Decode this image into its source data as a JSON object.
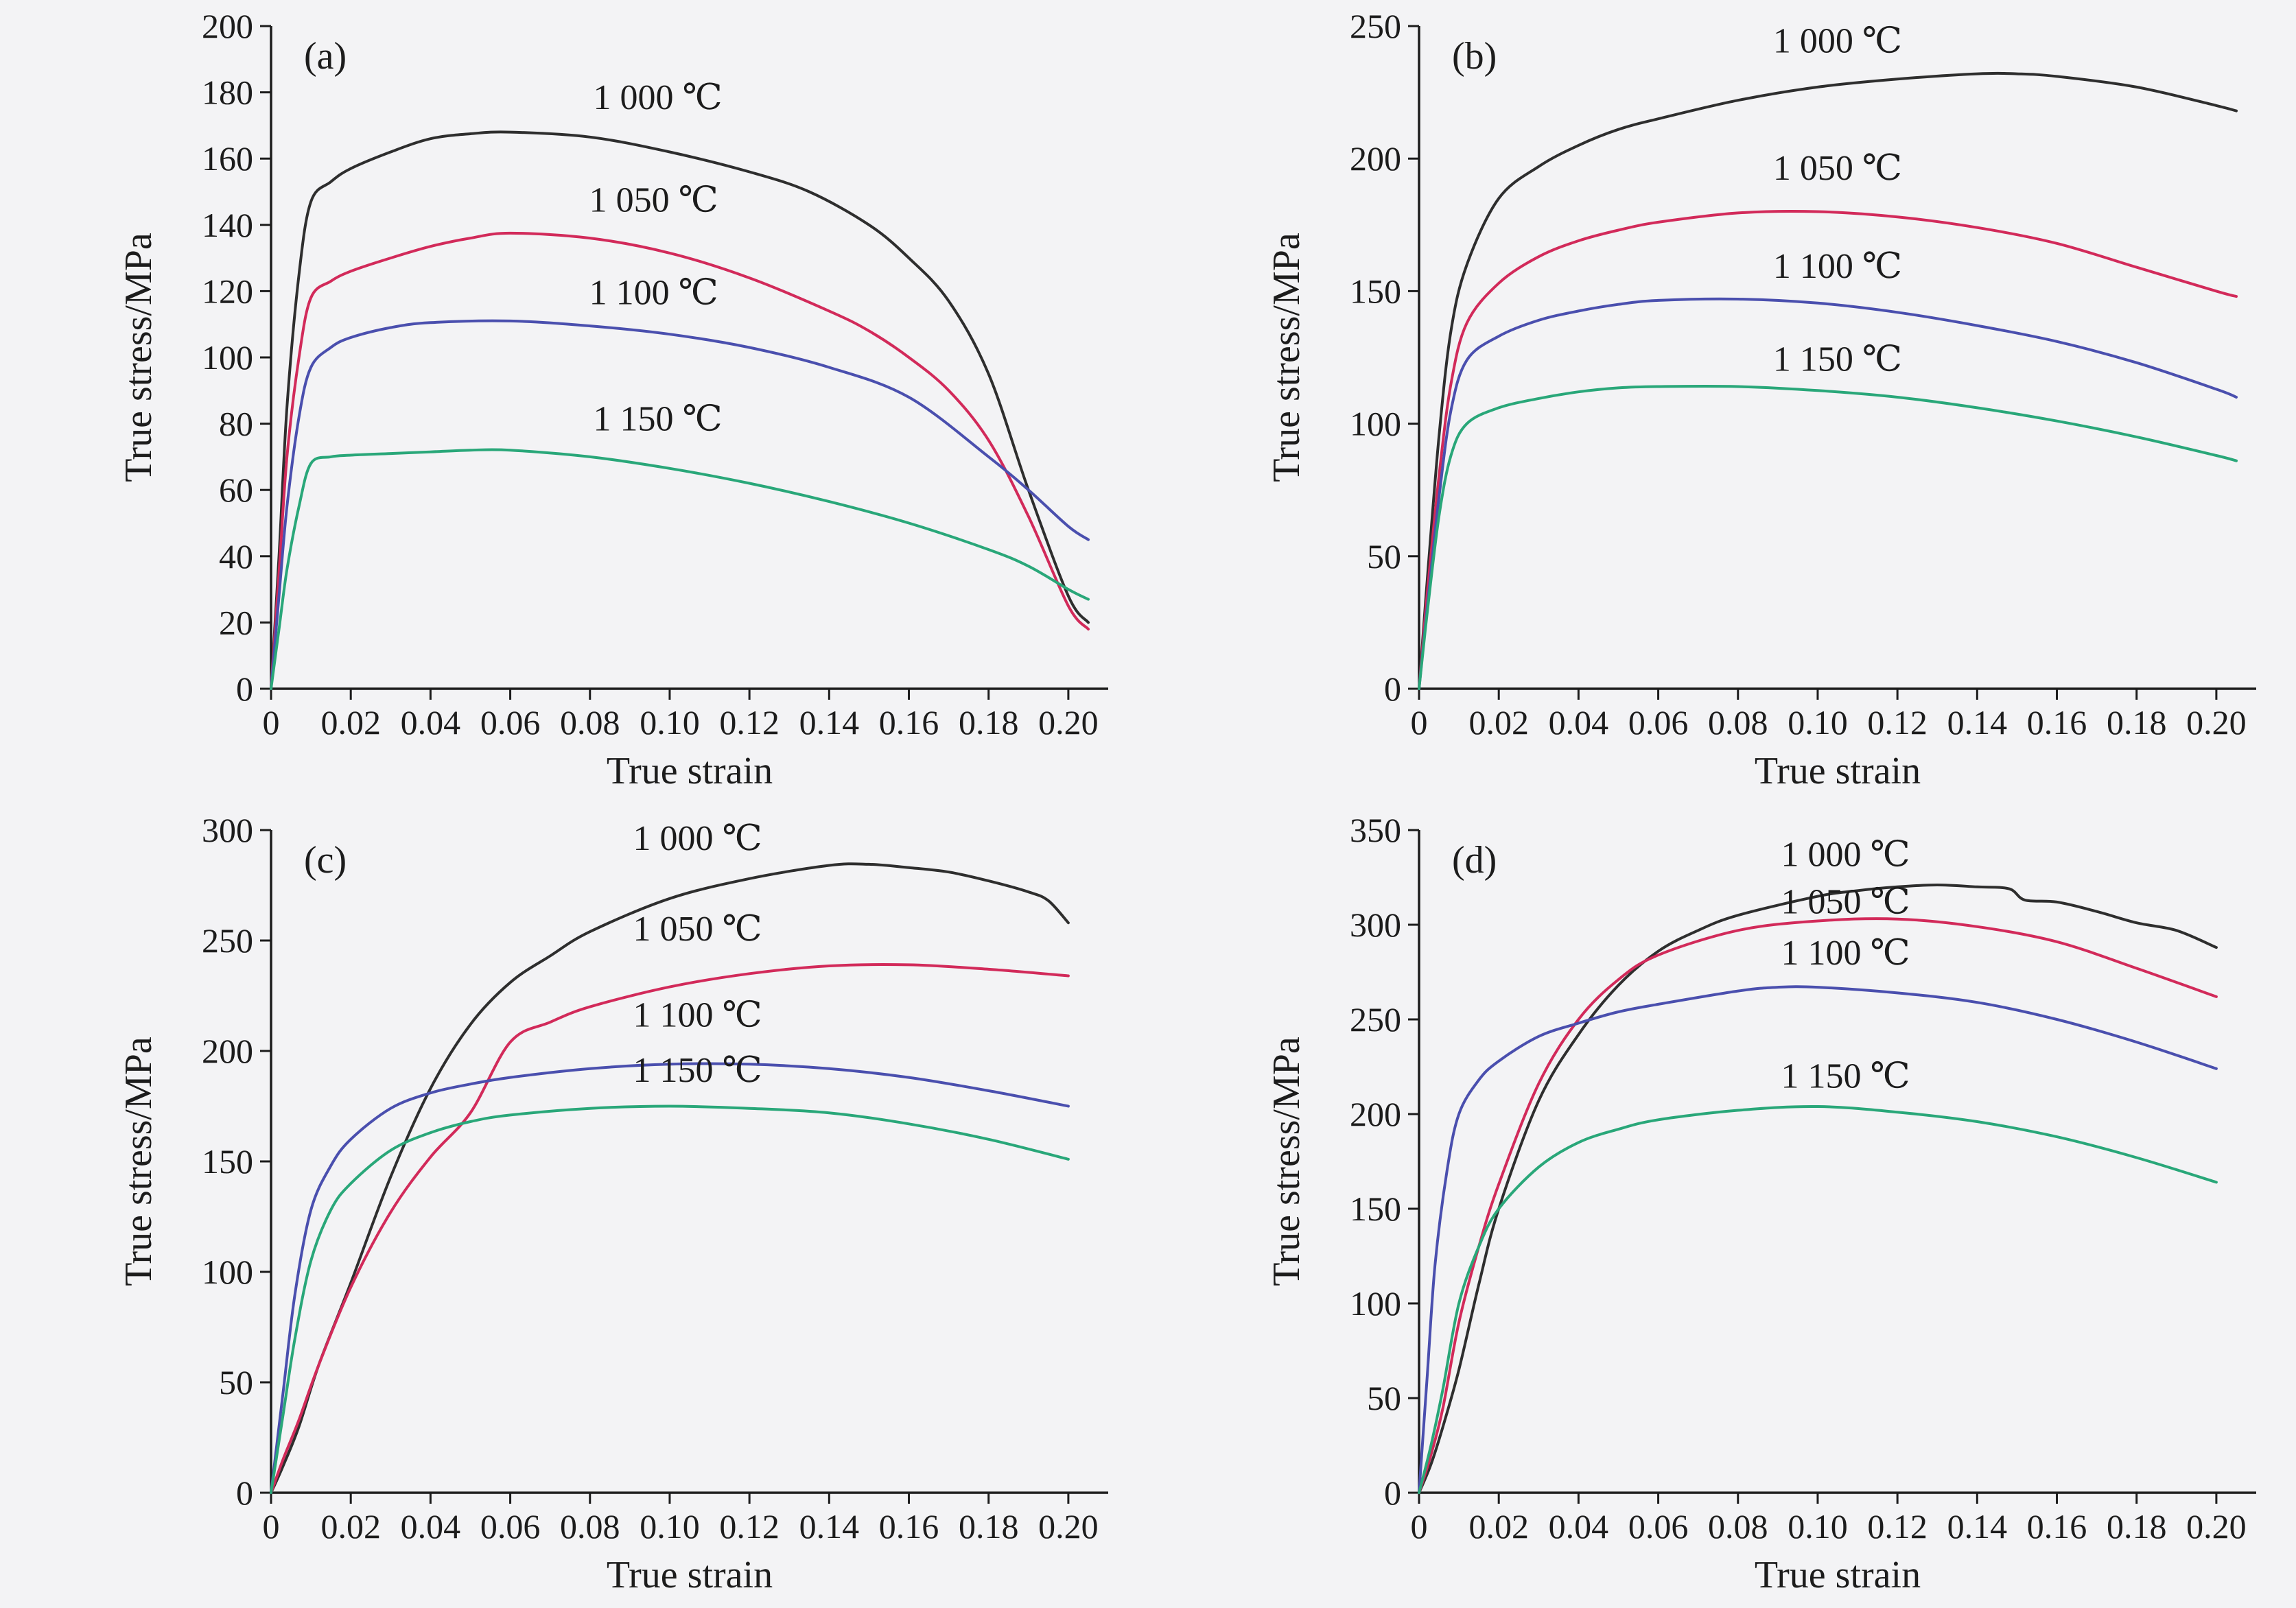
{
  "figure": {
    "background": "#f3f3f5",
    "axis_color": "#1c1c1c",
    "text_color": "#1c1c1c",
    "series_colors": {
      "1000": "#2e2e2e",
      "1050": "#d22a5a",
      "1100": "#4a4fae",
      "1150": "#29a779"
    }
  },
  "chart_data": [
    {
      "type": "line",
      "panel": "(a)",
      "panel_key": "a",
      "xlabel": "True strain",
      "ylabel": "True stress/MPa",
      "xlim": [
        0,
        0.21
      ],
      "ylim": [
        0,
        200
      ],
      "grid": false,
      "legend": "in-plot labels",
      "xticks": [
        0,
        0.02,
        0.04,
        0.06,
        0.08,
        0.1,
        0.12,
        0.14,
        0.16,
        0.18,
        0.2
      ],
      "xtick_labels": [
        "0",
        "0.02",
        "0.04",
        "0.06",
        "0.08",
        "0.10",
        "0.12",
        "0.14",
        "0.16",
        "0.18",
        "0.20"
      ],
      "yticks": [
        0,
        20,
        40,
        60,
        80,
        100,
        120,
        140,
        160,
        180,
        200
      ],
      "series": [
        {
          "name": "1 000 ℃",
          "color_key": "1000",
          "label_x": 0.097,
          "label_y": 175,
          "x": [
            0,
            0.002,
            0.004,
            0.007,
            0.01,
            0.015,
            0.02,
            0.03,
            0.04,
            0.05,
            0.06,
            0.08,
            0.1,
            0.12,
            0.135,
            0.15,
            0.16,
            0.17,
            0.18,
            0.19,
            0.2,
            0.205
          ],
          "y": [
            0,
            40,
            85,
            125,
            147,
            153,
            157,
            162,
            166,
            167.5,
            168,
            166.5,
            162,
            156,
            150,
            140,
            130,
            117,
            95,
            60,
            28,
            20
          ]
        },
        {
          "name": "1 050 ℃",
          "color_key": "1050",
          "label_x": 0.096,
          "label_y": 144,
          "x": [
            0,
            0.002,
            0.004,
            0.007,
            0.01,
            0.015,
            0.02,
            0.03,
            0.04,
            0.05,
            0.06,
            0.08,
            0.1,
            0.12,
            0.14,
            0.15,
            0.16,
            0.17,
            0.18,
            0.19,
            0.2,
            0.205
          ],
          "y": [
            0,
            35,
            70,
            100,
            118,
            123,
            126,
            130,
            133.5,
            136,
            137.5,
            136,
            131.5,
            124,
            114,
            108,
            100,
            90,
            75,
            52,
            25,
            18
          ]
        },
        {
          "name": "1 100 ℃",
          "color_key": "1100",
          "label_x": 0.096,
          "label_y": 116,
          "x": [
            0,
            0.002,
            0.004,
            0.007,
            0.01,
            0.015,
            0.02,
            0.03,
            0.04,
            0.06,
            0.08,
            0.1,
            0.12,
            0.14,
            0.16,
            0.18,
            0.19,
            0.2,
            0.205
          ],
          "y": [
            0,
            28,
            55,
            82,
            97,
            103,
            106,
            109,
            110.5,
            111,
            109.5,
            107,
            103,
            97,
            88,
            70,
            60,
            49,
            45
          ]
        },
        {
          "name": "1 150 ℃",
          "color_key": "1150",
          "label_x": 0.097,
          "label_y": 78,
          "x": [
            0,
            0.002,
            0.004,
            0.007,
            0.01,
            0.015,
            0.02,
            0.03,
            0.04,
            0.05,
            0.06,
            0.08,
            0.1,
            0.12,
            0.14,
            0.16,
            0.18,
            0.19,
            0.2,
            0.205
          ],
          "y": [
            0,
            18,
            36,
            55,
            68,
            70,
            70.5,
            71,
            71.5,
            72,
            72,
            70,
            66.5,
            62,
            56.5,
            50,
            42,
            37,
            30,
            27
          ]
        }
      ]
    },
    {
      "type": "line",
      "panel": "(b)",
      "panel_key": "b",
      "xlabel": "True strain",
      "ylabel": "True stress/MPa",
      "xlim": [
        0,
        0.21
      ],
      "ylim": [
        0,
        250
      ],
      "grid": false,
      "legend": "in-plot labels",
      "xticks": [
        0,
        0.02,
        0.04,
        0.06,
        0.08,
        0.1,
        0.12,
        0.14,
        0.16,
        0.18,
        0.2
      ],
      "xtick_labels": [
        "0",
        "0.02",
        "0.04",
        "0.06",
        "0.08",
        "0.10",
        "0.12",
        "0.14",
        "0.16",
        "0.18",
        "0.20"
      ],
      "yticks": [
        0,
        50,
        100,
        150,
        200,
        250
      ],
      "series": [
        {
          "name": "1 000 ℃",
          "color_key": "1000",
          "label_x": 0.105,
          "label_y": 240,
          "x": [
            0,
            0.002,
            0.005,
            0.008,
            0.012,
            0.02,
            0.03,
            0.04,
            0.05,
            0.06,
            0.08,
            0.1,
            0.12,
            0.14,
            0.15,
            0.16,
            0.18,
            0.2,
            0.205
          ],
          "y": [
            0,
            40,
            95,
            135,
            160,
            185,
            197,
            205,
            211,
            215,
            222,
            227,
            230,
            232,
            232,
            231,
            227,
            220,
            218
          ]
        },
        {
          "name": "1 050 ℃",
          "color_key": "1050",
          "label_x": 0.105,
          "label_y": 192,
          "x": [
            0,
            0.002,
            0.005,
            0.008,
            0.012,
            0.02,
            0.03,
            0.04,
            0.05,
            0.06,
            0.08,
            0.1,
            0.12,
            0.14,
            0.16,
            0.18,
            0.2,
            0.205
          ],
          "y": [
            0,
            35,
            80,
            115,
            138,
            153,
            163,
            169,
            173,
            176,
            179.5,
            180,
            178,
            174,
            168,
            159,
            150,
            148
          ]
        },
        {
          "name": "1 100 ℃",
          "color_key": "1100",
          "label_x": 0.105,
          "label_y": 155,
          "x": [
            0,
            0.002,
            0.005,
            0.008,
            0.012,
            0.02,
            0.03,
            0.04,
            0.05,
            0.06,
            0.08,
            0.1,
            0.12,
            0.14,
            0.16,
            0.18,
            0.2,
            0.205
          ],
          "y": [
            0,
            30,
            72,
            105,
            124,
            133,
            139,
            142.5,
            145,
            146.5,
            147,
            145.5,
            142,
            137,
            131,
            123,
            113,
            110
          ]
        },
        {
          "name": "1 150 ℃",
          "color_key": "1150",
          "label_x": 0.105,
          "label_y": 120,
          "x": [
            0,
            0.002,
            0.005,
            0.008,
            0.012,
            0.02,
            0.03,
            0.04,
            0.05,
            0.06,
            0.08,
            0.1,
            0.12,
            0.14,
            0.16,
            0.18,
            0.2,
            0.205
          ],
          "y": [
            0,
            28,
            65,
            88,
            100,
            106,
            109.5,
            112,
            113.5,
            114,
            114,
            112.5,
            110,
            106,
            101,
            95,
            88,
            86
          ]
        }
      ]
    },
    {
      "type": "line",
      "panel": "(c)",
      "panel_key": "c",
      "xlabel": "True strain",
      "ylabel": "True stress/MPa",
      "xlim": [
        0,
        0.21
      ],
      "ylim": [
        0,
        300
      ],
      "grid": false,
      "legend": "in-plot labels",
      "xticks": [
        0,
        0.02,
        0.04,
        0.06,
        0.08,
        0.1,
        0.12,
        0.14,
        0.16,
        0.18,
        0.2
      ],
      "xtick_labels": [
        "0",
        "0.02",
        "0.04",
        "0.06",
        "0.08",
        "0.10",
        "0.12",
        "0.14",
        "0.16",
        "0.18",
        "0.20"
      ],
      "yticks": [
        0,
        50,
        100,
        150,
        200,
        250,
        300
      ],
      "series": [
        {
          "name": "1 000 ℃",
          "color_key": "1000",
          "label_x": 0.107,
          "label_y": 291,
          "x": [
            0,
            0.003,
            0.007,
            0.012,
            0.02,
            0.03,
            0.04,
            0.05,
            0.06,
            0.07,
            0.08,
            0.1,
            0.12,
            0.14,
            0.15,
            0.16,
            0.17,
            0.18,
            0.19,
            0.195,
            0.2
          ],
          "y": [
            0,
            12,
            30,
            58,
            95,
            143,
            183,
            212,
            231,
            243,
            254,
            269,
            278,
            284,
            284.5,
            283,
            281,
            277,
            272,
            268,
            258
          ]
        },
        {
          "name": "1 050 ℃",
          "color_key": "1050",
          "label_x": 0.107,
          "label_y": 250,
          "x": [
            0,
            0.003,
            0.007,
            0.012,
            0.02,
            0.03,
            0.04,
            0.05,
            0.06,
            0.07,
            0.08,
            0.1,
            0.12,
            0.14,
            0.16,
            0.18,
            0.2
          ],
          "y": [
            0,
            15,
            33,
            58,
            93,
            127,
            152,
            172,
            204,
            213,
            220,
            229,
            235,
            238.5,
            239,
            237,
            234
          ]
        },
        {
          "name": "1 100 ℃",
          "color_key": "1100",
          "label_x": 0.107,
          "label_y": 211,
          "x": [
            0,
            0.003,
            0.006,
            0.01,
            0.015,
            0.02,
            0.03,
            0.04,
            0.05,
            0.06,
            0.08,
            0.1,
            0.12,
            0.14,
            0.16,
            0.18,
            0.2
          ],
          "y": [
            0,
            45,
            90,
            128,
            148,
            160,
            174,
            181,
            185,
            188,
            192,
            194,
            194,
            192,
            188,
            182,
            175
          ]
        },
        {
          "name": "1 150 ℃",
          "color_key": "1150",
          "label_x": 0.107,
          "label_y": 186,
          "x": [
            0,
            0.003,
            0.006,
            0.01,
            0.015,
            0.02,
            0.03,
            0.04,
            0.05,
            0.06,
            0.08,
            0.1,
            0.12,
            0.14,
            0.16,
            0.18,
            0.2
          ],
          "y": [
            0,
            35,
            70,
            105,
            128,
            140,
            155,
            163,
            168,
            171,
            174,
            175,
            174,
            172,
            167,
            160,
            151
          ]
        }
      ]
    },
    {
      "type": "line",
      "panel": "(d)",
      "panel_key": "d",
      "xlabel": "True strain",
      "ylabel": "True stress/MPa",
      "xlim": [
        0,
        0.21
      ],
      "ylim": [
        0,
        350
      ],
      "grid": false,
      "legend": "in-plot labels",
      "xticks": [
        0,
        0.02,
        0.04,
        0.06,
        0.08,
        0.1,
        0.12,
        0.14,
        0.16,
        0.18,
        0.2
      ],
      "xtick_labels": [
        "0",
        "0.02",
        "0.04",
        "0.06",
        "0.08",
        "0.10",
        "0.12",
        "0.14",
        "0.16",
        "0.18",
        "0.20"
      ],
      "yticks": [
        0,
        50,
        100,
        150,
        200,
        250,
        300,
        350
      ],
      "series": [
        {
          "name": "1 000 ℃",
          "color_key": "1000",
          "label_x": 0.107,
          "label_y": 331,
          "x": [
            0,
            0.003,
            0.006,
            0.01,
            0.015,
            0.02,
            0.03,
            0.04,
            0.05,
            0.06,
            0.07,
            0.08,
            0.1,
            0.11,
            0.12,
            0.13,
            0.14,
            0.148,
            0.152,
            0.16,
            0.17,
            0.18,
            0.19,
            0.2
          ],
          "y": [
            0,
            15,
            35,
            65,
            110,
            150,
            207,
            242,
            268,
            286,
            297,
            305,
            315,
            318,
            320,
            321,
            320,
            319,
            313,
            312,
            307,
            301,
            297,
            288
          ]
        },
        {
          "name": "1 050 ℃",
          "color_key": "1050",
          "label_x": 0.107,
          "label_y": 306,
          "x": [
            0,
            0.003,
            0.006,
            0.01,
            0.015,
            0.02,
            0.03,
            0.04,
            0.05,
            0.06,
            0.08,
            0.1,
            0.12,
            0.14,
            0.16,
            0.18,
            0.2
          ],
          "y": [
            0,
            20,
            45,
            90,
            130,
            163,
            216,
            250,
            271,
            284,
            297,
            302,
            303,
            299,
            291,
            277,
            262
          ]
        },
        {
          "name": "1 100 ℃",
          "color_key": "1100",
          "label_x": 0.107,
          "label_y": 279,
          "x": [
            0,
            0.002,
            0.004,
            0.007,
            0.01,
            0.015,
            0.02,
            0.03,
            0.04,
            0.05,
            0.06,
            0.08,
            0.09,
            0.1,
            0.12,
            0.14,
            0.16,
            0.18,
            0.2
          ],
          "y": [
            0,
            60,
            120,
            170,
            200,
            218,
            228,
            241,
            248,
            254,
            258,
            265,
            267,
            267,
            264,
            259,
            250,
            238,
            224
          ]
        },
        {
          "name": "1 150 ℃",
          "color_key": "1150",
          "label_x": 0.107,
          "label_y": 214,
          "x": [
            0,
            0.003,
            0.006,
            0.01,
            0.015,
            0.02,
            0.03,
            0.04,
            0.05,
            0.06,
            0.08,
            0.1,
            0.12,
            0.14,
            0.16,
            0.18,
            0.2
          ],
          "y": [
            0,
            25,
            55,
            100,
            130,
            150,
            172,
            185,
            192,
            197,
            202,
            204,
            201,
            196,
            188,
            177,
            164
          ]
        }
      ]
    }
  ]
}
